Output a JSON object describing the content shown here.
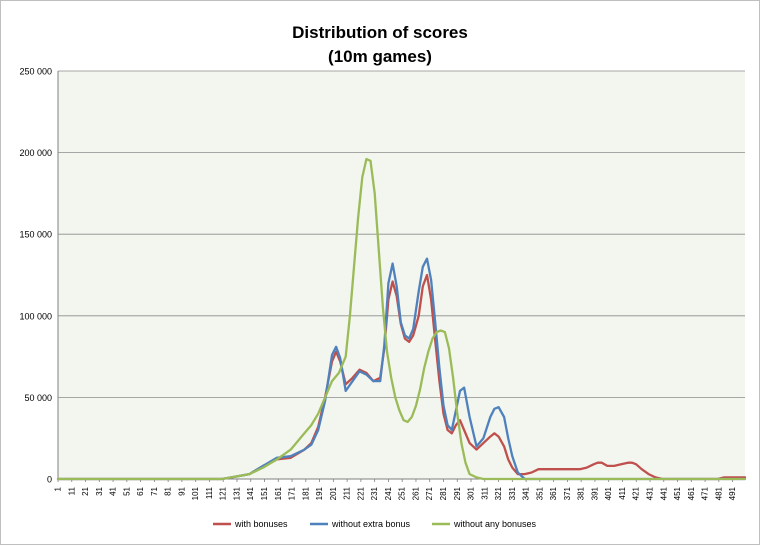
{
  "chart_data": {
    "type": "line",
    "title_lines": [
      "Distribution of scores",
      "(10m games)"
    ],
    "xlabel": "",
    "ylabel": "",
    "x_range": [
      1,
      500
    ],
    "ylim": [
      0,
      250000
    ],
    "y_ticks": [
      0,
      50000,
      100000,
      150000,
      200000,
      250000
    ],
    "y_tick_labels": [
      "0",
      "50 000",
      "100 000",
      "150 000",
      "200 000",
      "250 000"
    ],
    "x_tick_labels": [
      "1",
      "11",
      "21",
      "31",
      "41",
      "51",
      "61",
      "71",
      "81",
      "91",
      "101",
      "111",
      "121",
      "131",
      "141",
      "151",
      "161",
      "171",
      "181",
      "191",
      "201",
      "211",
      "221",
      "231",
      "241",
      "251",
      "261",
      "271",
      "281",
      "291",
      "301",
      "311",
      "321",
      "331",
      "341",
      "351",
      "361",
      "371",
      "381",
      "391",
      "401",
      "411",
      "421",
      "431",
      "441",
      "451",
      "461",
      "471",
      "481",
      "491"
    ],
    "grid": "horizontal",
    "legend_position": "bottom",
    "background_color": "#f2f6ee",
    "series": [
      {
        "name": "with bonuses",
        "color": "#c0504d",
        "x": [
          1,
          120,
          130,
          140,
          150,
          160,
          170,
          180,
          185,
          190,
          195,
          200,
          203,
          206,
          210,
          215,
          220,
          225,
          230,
          235,
          238,
          241,
          244,
          247,
          250,
          253,
          256,
          259,
          263,
          266,
          269,
          272,
          275,
          278,
          281,
          284,
          287,
          290,
          293,
          296,
          300,
          305,
          310,
          315,
          318,
          321,
          325,
          328,
          331,
          335,
          340,
          345,
          350,
          355,
          360,
          370,
          380,
          385,
          390,
          393,
          396,
          400,
          405,
          410,
          415,
          418,
          421,
          425,
          430,
          435,
          440,
          450,
          460,
          470,
          480,
          485,
          490,
          500
        ],
        "y": [
          0,
          0,
          1500,
          3000,
          8000,
          12000,
          13000,
          18000,
          22000,
          32000,
          50000,
          72000,
          78000,
          72000,
          58000,
          62000,
          67000,
          65000,
          60000,
          62000,
          80000,
          110000,
          121000,
          112000,
          95000,
          86000,
          84000,
          88000,
          100000,
          118000,
          125000,
          110000,
          85000,
          60000,
          40000,
          30000,
          28000,
          33000,
          36000,
          30000,
          22000,
          18000,
          22000,
          26000,
          28000,
          26000,
          20000,
          12000,
          7000,
          3000,
          3000,
          4000,
          6000,
          6000,
          6000,
          6000,
          6000,
          7000,
          9000,
          10000,
          10000,
          8000,
          8000,
          9000,
          10000,
          10000,
          9000,
          6000,
          3000,
          1000,
          0,
          0,
          0,
          0,
          0,
          1000,
          1000,
          1000
        ]
      },
      {
        "name": "without extra bonus",
        "color": "#4f81bd",
        "x": [
          1,
          120,
          130,
          140,
          150,
          160,
          170,
          180,
          185,
          190,
          195,
          200,
          203,
          206,
          210,
          215,
          220,
          225,
          230,
          235,
          238,
          241,
          244,
          247,
          250,
          253,
          256,
          259,
          263,
          266,
          269,
          272,
          275,
          278,
          281,
          284,
          287,
          290,
          293,
          296,
          300,
          305,
          310,
          315,
          318,
          321,
          325,
          328,
          331,
          335,
          340,
          345,
          350,
          360,
          380,
          400,
          420,
          440,
          460,
          480,
          500
        ],
        "y": [
          0,
          0,
          1500,
          3000,
          8000,
          13000,
          14000,
          18000,
          21000,
          30000,
          48000,
          76000,
          81000,
          74000,
          54000,
          60000,
          66000,
          64000,
          60000,
          60000,
          82000,
          120000,
          132000,
          118000,
          96000,
          88000,
          86000,
          92000,
          115000,
          130000,
          135000,
          122000,
          96000,
          68000,
          45000,
          33000,
          30000,
          42000,
          54000,
          56000,
          38000,
          20000,
          25000,
          38000,
          43000,
          44000,
          38000,
          25000,
          14000,
          4000,
          0,
          0,
          0,
          0,
          0,
          0,
          0,
          0,
          0,
          0,
          0
        ]
      },
      {
        "name": "without any bonuses",
        "color": "#9bbb59",
        "x": [
          1,
          120,
          130,
          140,
          150,
          160,
          170,
          180,
          185,
          190,
          195,
          200,
          205,
          210,
          213,
          216,
          219,
          222,
          225,
          228,
          231,
          234,
          237,
          240,
          243,
          246,
          249,
          252,
          255,
          258,
          261,
          264,
          267,
          270,
          273,
          276,
          279,
          282,
          285,
          288,
          291,
          294,
          297,
          300,
          305,
          310,
          320,
          340,
          360,
          400,
          440,
          480,
          500
        ],
        "y": [
          0,
          0,
          1500,
          3000,
          7000,
          12000,
          18000,
          28000,
          33000,
          40000,
          50000,
          60000,
          65000,
          75000,
          100000,
          130000,
          160000,
          185000,
          196000,
          195000,
          175000,
          140000,
          105000,
          78000,
          62000,
          50000,
          42000,
          36000,
          35000,
          38000,
          45000,
          55000,
          68000,
          78000,
          86000,
          90000,
          91000,
          90000,
          80000,
          62000,
          40000,
          22000,
          10000,
          3000,
          1000,
          0,
          0,
          0,
          0,
          0,
          0,
          0,
          0
        ]
      }
    ]
  }
}
